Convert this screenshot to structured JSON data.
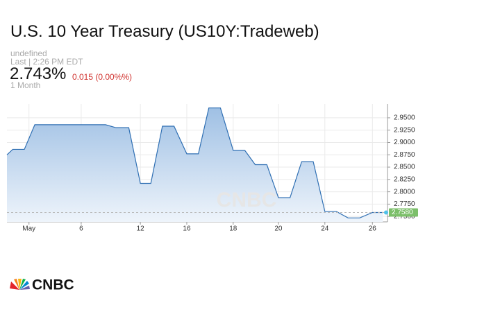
{
  "header": {
    "title": "U.S. 10 Year Treasury (US10Y:Tradeweb)",
    "source": "undefined",
    "last_time": "Last | 2:26 PM EDT",
    "price": "2.743%",
    "change": "0.015 (0.00%%)",
    "period": "1 Month"
  },
  "logo": "CNBC",
  "chart_data": {
    "type": "line",
    "x": [
      0,
      0.5,
      1.5,
      2.4,
      8.5,
      9.4,
      10.5,
      11.5,
      12.4,
      13.4,
      14.4,
      15.5,
      16.5,
      17.4,
      18.4,
      19.5,
      20.5,
      21.4,
      22.4,
      23.4,
      24.4,
      25.4,
      26.4,
      27.4,
      28.4,
      29.4,
      30.4,
      31.5,
      32.4
    ],
    "series": [
      {
        "name": "US10Y",
        "color": "#2f6fb3",
        "values": [
          2.875,
          2.886,
          2.886,
          2.936,
          2.936,
          2.93,
          2.93,
          2.817,
          2.817,
          2.933,
          2.933,
          2.877,
          2.877,
          2.97,
          2.97,
          2.884,
          2.884,
          2.855,
          2.855,
          2.788,
          2.788,
          2.861,
          2.861,
          2.76,
          2.76,
          2.747,
          2.747,
          2.758,
          2.758
        ]
      }
    ],
    "xlim": [
      0,
      32.8
    ],
    "xticks": [
      {
        "value": 1.9,
        "label": "May"
      },
      {
        "value": 6.4,
        "label": "6"
      },
      {
        "value": 11.5,
        "label": "12"
      },
      {
        "value": 15.5,
        "label": "16"
      },
      {
        "value": 19.5,
        "label": "18"
      },
      {
        "value": 23.4,
        "label": "20"
      },
      {
        "value": 27.4,
        "label": "24"
      },
      {
        "value": 31.5,
        "label": "26"
      }
    ],
    "ylim": [
      2.739,
      2.978
    ],
    "yticks": [
      {
        "value": 2.75,
        "label": "2.7500"
      },
      {
        "value": 2.775,
        "label": "2.7750"
      },
      {
        "value": 2.8,
        "label": "2.8000"
      },
      {
        "value": 2.825,
        "label": "2.8250"
      },
      {
        "value": 2.85,
        "label": "2.8500"
      },
      {
        "value": 2.875,
        "label": "2.8750"
      },
      {
        "value": 2.9,
        "label": "2.9000"
      },
      {
        "value": 2.925,
        "label": "2.9250"
      },
      {
        "value": 2.95,
        "label": "2.9500"
      }
    ],
    "last_value": {
      "value": 2.758,
      "label": "2.7580"
    },
    "grid": true
  }
}
